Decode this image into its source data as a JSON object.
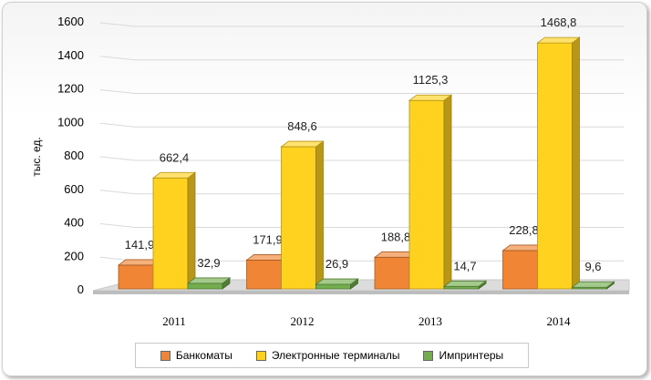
{
  "chart_data": {
    "type": "bar",
    "ylabel": "тыс. ед.",
    "xlabel": "",
    "ylim": [
      0,
      1600
    ],
    "yticks": [
      0,
      200,
      400,
      600,
      800,
      1000,
      1200,
      1400,
      1600
    ],
    "categories": [
      "2011",
      "2012",
      "2013",
      "2014"
    ],
    "series": [
      {
        "name": "Банкоматы",
        "values": [
          141.9,
          171.9,
          188.8,
          228.8
        ],
        "labels": [
          "141,9",
          "171,9",
          "188,8",
          "228,8"
        ],
        "color": "#ef8535"
      },
      {
        "name": "Электронные терминалы",
        "values": [
          662.4,
          848.6,
          1125.3,
          1468.8
        ],
        "labels": [
          "662,4",
          "848,6",
          "1125,3",
          "1468,8"
        ],
        "color": "#ffd21f"
      },
      {
        "name": "Импринтеры",
        "values": [
          32.9,
          26.9,
          14.7,
          9.6
        ],
        "labels": [
          "32,9",
          "26,9",
          "14,7",
          "9,6"
        ],
        "color": "#73ad4d"
      }
    ],
    "grid": true,
    "legend_position": "bottom",
    "style": "3d-column"
  }
}
